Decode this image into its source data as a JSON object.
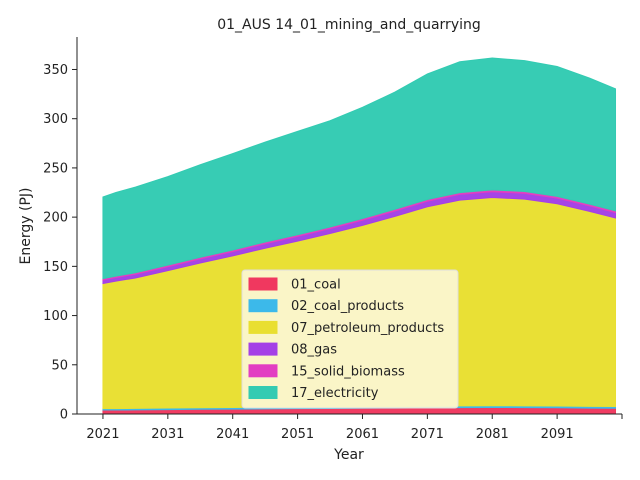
{
  "chart_data": {
    "type": "area",
    "title": "01_AUS 14_01_mining_and_quarrying",
    "xlabel": "Year",
    "ylabel": "Energy (PJ)",
    "xlim": [
      2017,
      2101
    ],
    "ylim": [
      0,
      383
    ],
    "x_ticks": [
      2021,
      2031,
      2041,
      2051,
      2061,
      2071,
      2081,
      2091,
      2101
    ],
    "x_tick_labels": [
      "2021",
      "2031",
      "2041",
      "2051",
      "2061",
      "2071",
      "2081",
      "2091",
      ""
    ],
    "y_ticks": [
      0,
      50,
      100,
      150,
      200,
      250,
      300,
      350
    ],
    "legend_position": "lower center",
    "x": [
      2021,
      2023,
      2026,
      2031,
      2036,
      2041,
      2046,
      2051,
      2056,
      2061,
      2066,
      2071,
      2076,
      2081,
      2086,
      2091,
      2096,
      2100
    ],
    "series": [
      {
        "name": "01_coal",
        "color": "#f0385f",
        "values": [
          4,
          4,
          4.2,
          4.5,
          4.8,
          5,
          5.2,
          5.4,
          5.6,
          5.8,
          6,
          6.2,
          6.5,
          6.6,
          6.5,
          6.3,
          6,
          5.8
        ]
      },
      {
        "name": "02_coal_products",
        "color": "#3cb9ea",
        "values": [
          1.5,
          1.5,
          1.5,
          1.6,
          1.6,
          1.6,
          1.7,
          1.7,
          1.7,
          1.8,
          1.8,
          1.8,
          1.8,
          1.8,
          1.8,
          1.8,
          1.8,
          1.8
        ]
      },
      {
        "name": "07_petroleum_products",
        "color": "#e9df31",
        "values": [
          127,
          129.5,
          132.5,
          139.5,
          147,
          154,
          161.5,
          168.5,
          176,
          184,
          193,
          202.5,
          209,
          211.5,
          210,
          205.5,
          198,
          191.5
        ]
      },
      {
        "name": "08_gas",
        "color": "#a440e6",
        "values": [
          3.5,
          3.6,
          3.8,
          4,
          4.2,
          4.4,
          4.6,
          4.8,
          5,
          5.2,
          5.4,
          5.6,
          5.8,
          5.9,
          5.8,
          5.7,
          5.6,
          5.5
        ]
      },
      {
        "name": "15_solid_biomass",
        "color": "#e23ec2",
        "values": [
          1.5,
          1.5,
          1.5,
          1.6,
          1.6,
          1.6,
          1.7,
          1.7,
          1.7,
          1.8,
          1.8,
          1.8,
          1.8,
          1.9,
          1.9,
          1.8,
          1.8,
          1.8
        ]
      },
      {
        "name": "17_electricity",
        "color": "#33cbb2",
        "values": [
          83,
          85,
          87,
          90,
          94,
          98,
          101.5,
          105,
          108,
          113,
          119,
          127.5,
          133,
          134,
          133,
          132,
          128,
          124
        ]
      }
    ]
  }
}
